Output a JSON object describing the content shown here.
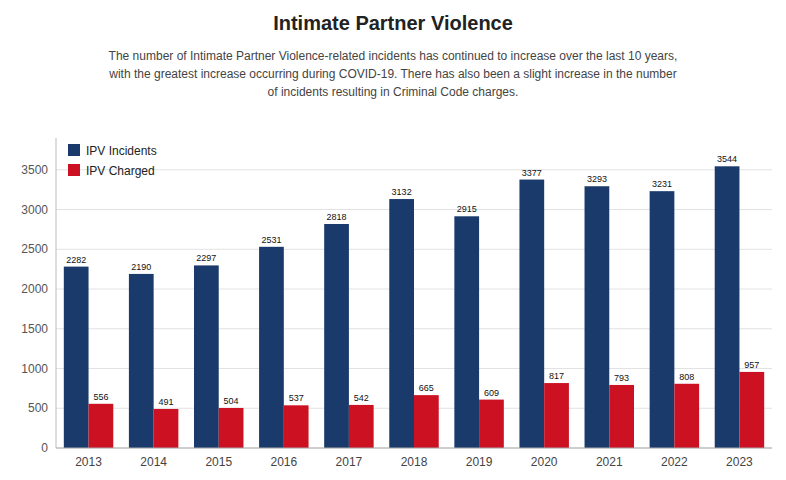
{
  "chart_data": {
    "type": "bar",
    "title": "Intimate Partner Violence",
    "subtitle": [
      "The number of Intimate Partner Violence-related incidents has continued to increase over the last 10 years,",
      "with the greatest increase occurring during COVID-19. There has also been a slight increase in the number",
      "of incidents resulting in Criminal Code charges."
    ],
    "categories": [
      "2013",
      "2014",
      "2015",
      "2016",
      "2017",
      "2018",
      "2019",
      "2020",
      "2021",
      "2022",
      "2023"
    ],
    "series": [
      {
        "name": "IPV Incidents",
        "color": "#1a3a6b",
        "values": [
          2282,
          2190,
          2297,
          2531,
          2818,
          3132,
          2915,
          3377,
          3293,
          3231,
          3544
        ]
      },
      {
        "name": "IPV Charged",
        "color": "#cc1122",
        "values": [
          556,
          491,
          504,
          537,
          542,
          665,
          609,
          817,
          793,
          808,
          957
        ]
      }
    ],
    "ylim": [
      0,
      3900
    ],
    "yticks": [
      0,
      500,
      1000,
      1500,
      2000,
      2500,
      3000,
      3500
    ],
    "grid": true,
    "legend": "upper left",
    "data_labels": true
  }
}
